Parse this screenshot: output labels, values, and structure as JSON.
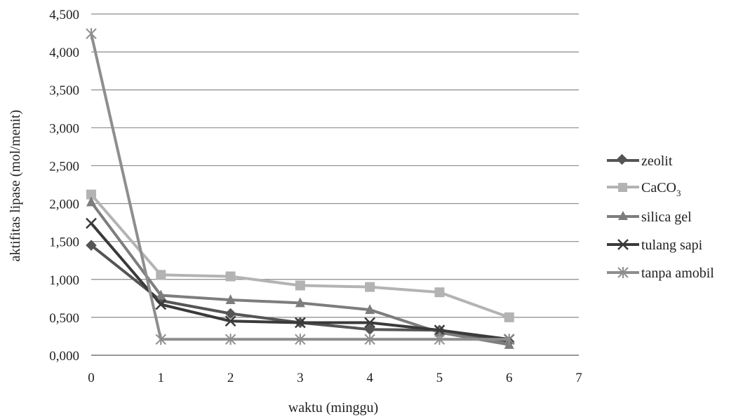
{
  "chart_data": {
    "type": "line",
    "title": "",
    "xlabel": "waktu (minggu)",
    "ylabel": "aktifitas lipase (mol/menit)",
    "xlim": [
      0,
      7
    ],
    "ylim": [
      0,
      4.5
    ],
    "x_ticks": [
      "0",
      "1",
      "2",
      "3",
      "4",
      "5",
      "6",
      "7"
    ],
    "y_ticks": [
      "0,000",
      "0,500",
      "1,000",
      "1,500",
      "2,000",
      "2,500",
      "3,000",
      "3,500",
      "4,000",
      "4,500"
    ],
    "grid": "horizontal",
    "legend_position": "right",
    "x": [
      0,
      1,
      2,
      3,
      4,
      5,
      6
    ],
    "series": [
      {
        "name": "zeolit",
        "marker": "diamond",
        "color": "#555555",
        "values": [
          1.45,
          0.72,
          0.55,
          0.43,
          0.34,
          0.33,
          0.18
        ]
      },
      {
        "name": "CaCO3",
        "marker": "square",
        "color": "#b3b3b3",
        "values": [
          2.12,
          1.06,
          1.04,
          0.92,
          0.9,
          0.83,
          0.5
        ]
      },
      {
        "name": "silica gel",
        "marker": "triangle",
        "color": "#7d7d7d",
        "values": [
          2.02,
          0.79,
          0.73,
          0.69,
          0.6,
          0.3,
          0.14
        ]
      },
      {
        "name": "tulang sapi",
        "marker": "x",
        "color": "#3a3a3a",
        "values": [
          1.74,
          0.67,
          0.45,
          0.43,
          0.43,
          0.33,
          0.21
        ]
      },
      {
        "name": "tanpa amobil",
        "marker": "asterisk",
        "color": "#8e8e8e",
        "values": [
          4.24,
          0.21,
          0.21,
          0.21,
          0.21,
          0.21,
          0.21
        ]
      }
    ],
    "legend": {
      "zeolit": "zeolit",
      "caco3_main": "CaCO",
      "caco3_sub": "3",
      "silica_gel": "silica gel",
      "tulang_sapi": "tulang sapi",
      "tanpa_amobil": "tanpa amobil"
    }
  }
}
